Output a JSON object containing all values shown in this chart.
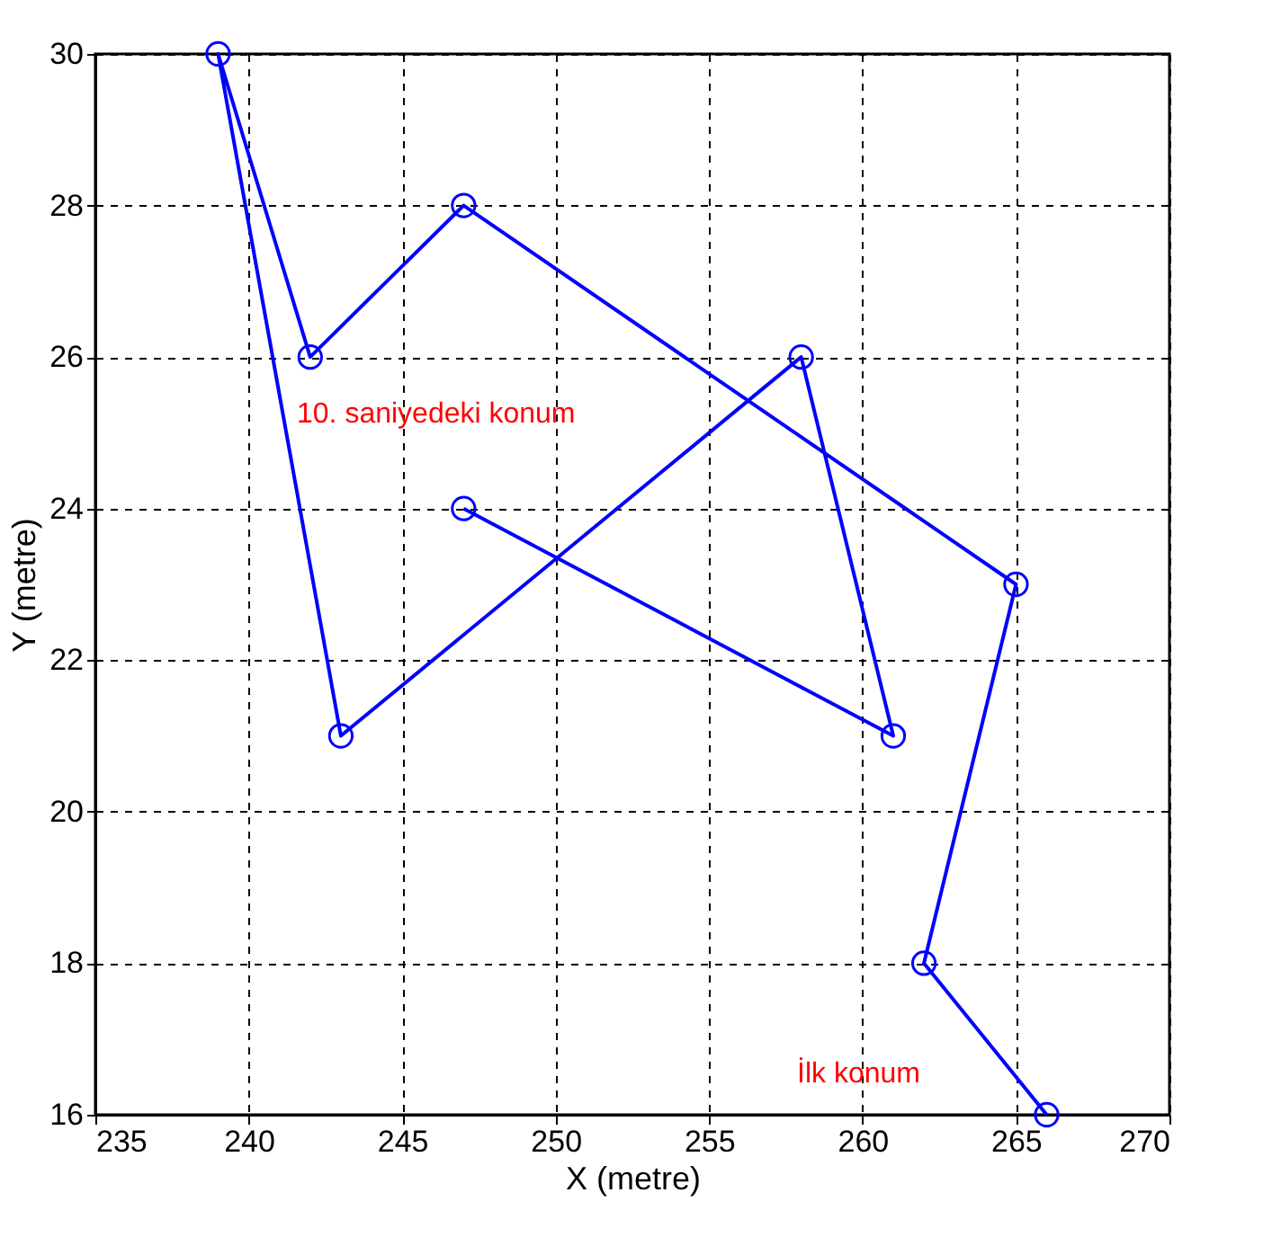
{
  "chart_data": {
    "type": "line",
    "xlabel": "X (metre)",
    "ylabel": "Y (metre)",
    "x": [
      266,
      262,
      265,
      247,
      242,
      239,
      243,
      258,
      261,
      247
    ],
    "series": [
      {
        "color": "#0000ff",
        "values": [
          16,
          18,
          23,
          28,
          26,
          30,
          21,
          26,
          21,
          24
        ]
      }
    ],
    "xlim": [
      235,
      270
    ],
    "xticks": [
      235,
      240,
      245,
      250,
      255,
      260,
      265,
      270
    ],
    "ylim": [
      16,
      30
    ],
    "yticks": [
      16,
      18,
      20,
      22,
      24,
      26,
      28,
      30
    ],
    "grid": true,
    "marker": "circle",
    "line_style": "solid",
    "annotations": [
      "İlk konum",
      "10. saniyedeki konum"
    ]
  }
}
